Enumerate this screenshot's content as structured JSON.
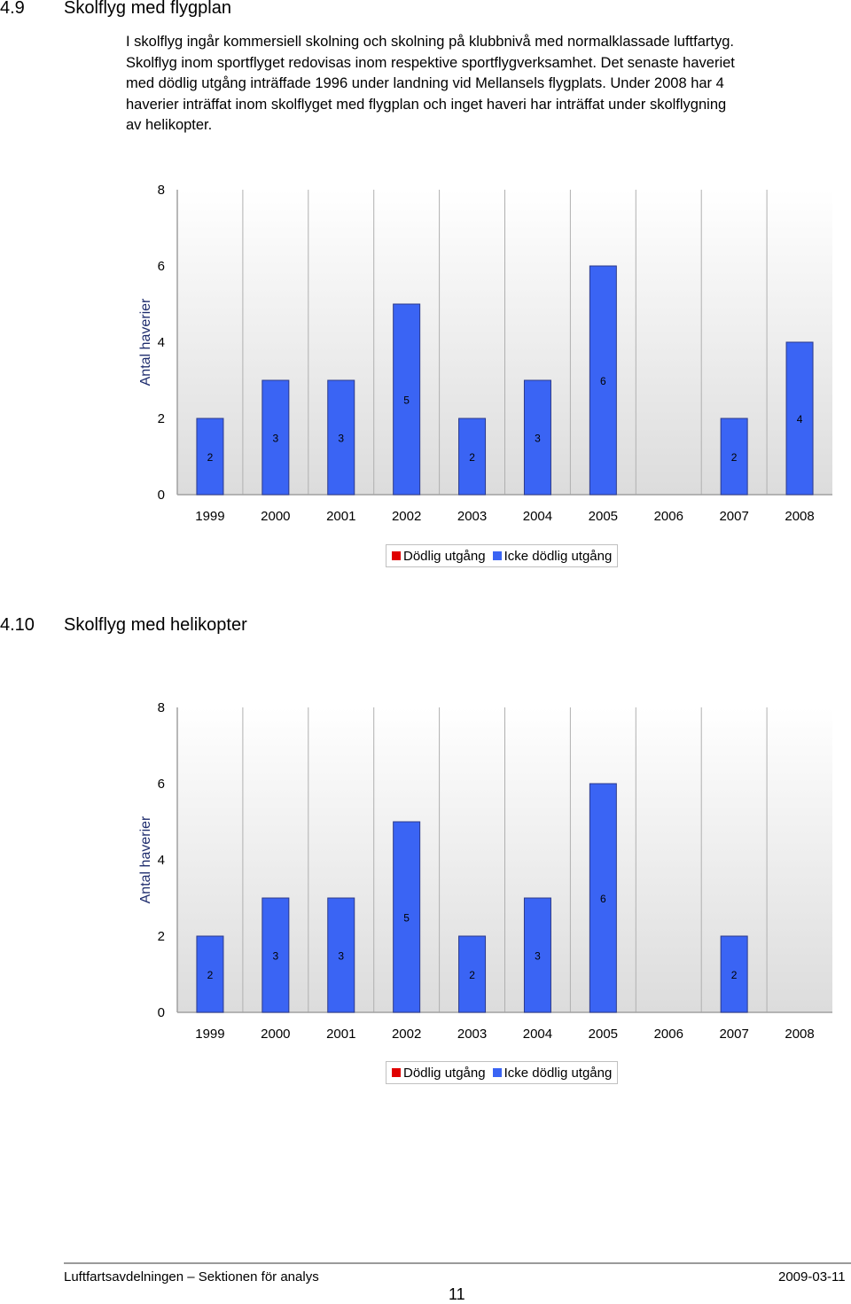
{
  "section1": {
    "number": "4.9",
    "title": "Skolflyg med flygplan",
    "lines": [
      "I skolflyg ingår kommersiell skolning och skolning på klubbnivå med normalklassade luftfartyg.",
      "Skolflyg inom sportflyget redovisas inom respektive sportflygverksamhet. Det senaste haveriet",
      "med dödlig utgång inträffade 1996 under landning vid Mellansels flygplats. Under 2008 har 4",
      "haverier inträffat inom skolflyget med flygplan och inget haveri har inträffat under skolflygning",
      "av helikopter."
    ]
  },
  "section2": {
    "number": "4.10",
    "title": "Skolflyg med helikopter"
  },
  "colors": {
    "fatal": "#e00000",
    "nonfatal": "#3a64f4",
    "bar_border": "#2c3a8a",
    "plot_bg_top": "#ffffff",
    "plot_bg_bottom": "#dcdcdc",
    "gridline": "#b0b0b0",
    "axis_title": "#1f2d6e"
  },
  "chart_data": [
    {
      "type": "bar",
      "stacked": true,
      "categories": [
        "1999",
        "2000",
        "2001",
        "2002",
        "2003",
        "2004",
        "2005",
        "2006",
        "2007",
        "2008"
      ],
      "series": [
        {
          "name": "Dödlig utgång",
          "values": [
            0,
            0,
            0,
            0,
            0,
            0,
            0,
            0,
            0,
            0
          ]
        },
        {
          "name": "Icke dödlig utgång",
          "values": [
            2,
            3,
            3,
            5,
            2,
            3,
            6,
            0,
            2,
            4
          ]
        }
      ],
      "data_labels": [
        "2",
        "3",
        "3",
        "5",
        "2",
        "3",
        "6",
        "",
        "2",
        "4"
      ],
      "yticks": [
        "0",
        "2",
        "4",
        "6",
        "8"
      ],
      "ylabel": "Antal haverier",
      "ylim": [
        0,
        8
      ],
      "grid": "vertical",
      "legend": "bottom"
    },
    {
      "type": "bar",
      "stacked": true,
      "categories": [
        "1999",
        "2000",
        "2001",
        "2002",
        "2003",
        "2004",
        "2005",
        "2006",
        "2007",
        "2008"
      ],
      "series": [
        {
          "name": "Dödlig utgång",
          "values": [
            0,
            0,
            0,
            0,
            0,
            0,
            0,
            0,
            0,
            0
          ]
        },
        {
          "name": "Icke dödlig utgång",
          "values": [
            2,
            3,
            3,
            5,
            2,
            3,
            6,
            0,
            2,
            0
          ]
        }
      ],
      "data_labels": [
        "2",
        "3",
        "3",
        "5",
        "2",
        "3",
        "6",
        "",
        "2",
        ""
      ],
      "yticks": [
        "0",
        "2",
        "4",
        "6",
        "8"
      ],
      "ylabel": "Antal haverier",
      "ylim": [
        0,
        8
      ],
      "grid": "vertical",
      "legend": "bottom"
    }
  ],
  "footer": {
    "left": "Luftfartsavdelningen – Sektionen för analys",
    "right": "2009-03-11",
    "page": "11"
  }
}
